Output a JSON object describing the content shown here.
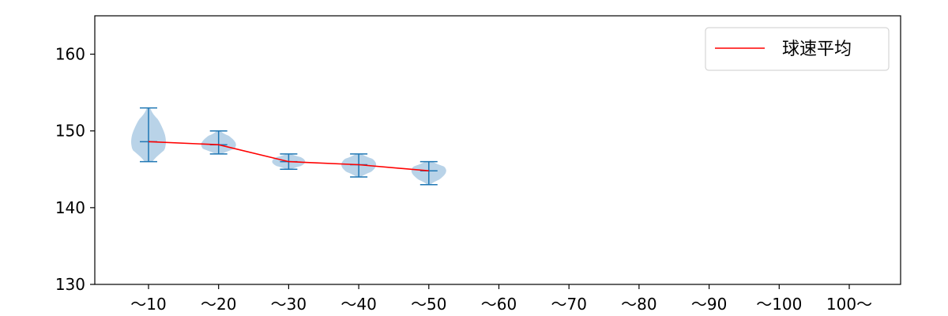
{
  "chart_data": {
    "type": "violin",
    "categories": [
      "～10",
      "～20",
      "～30",
      "～40",
      "～50",
      "～60",
      "～70",
      "～80",
      "～90",
      "～100",
      "100～"
    ],
    "ylim": [
      130,
      165
    ],
    "yticks": [
      130,
      140,
      150,
      160
    ],
    "grid": false,
    "legend_position": "top-right",
    "colors": {
      "violin_fill": "#a8c8e2",
      "whisker": "#1f77b4",
      "mean_line": "#ff0000",
      "axis": "#000000"
    },
    "series": [
      {
        "name": "球速平均",
        "type": "line",
        "values": [
          148.6,
          148.2,
          146.0,
          145.6,
          144.8,
          null,
          null,
          null,
          null,
          null,
          null
        ]
      }
    ],
    "distributions": [
      {
        "category": "～10",
        "min": 146,
        "max": 153,
        "mean": 148.6
      },
      {
        "category": "～20",
        "min": 147,
        "max": 150,
        "mean": 148.2
      },
      {
        "category": "～30",
        "min": 145,
        "max": 147,
        "mean": 146.0
      },
      {
        "category": "～40",
        "min": 144,
        "max": 147,
        "mean": 145.6
      },
      {
        "category": "～50",
        "min": 143,
        "max": 146,
        "mean": 144.8
      }
    ]
  }
}
